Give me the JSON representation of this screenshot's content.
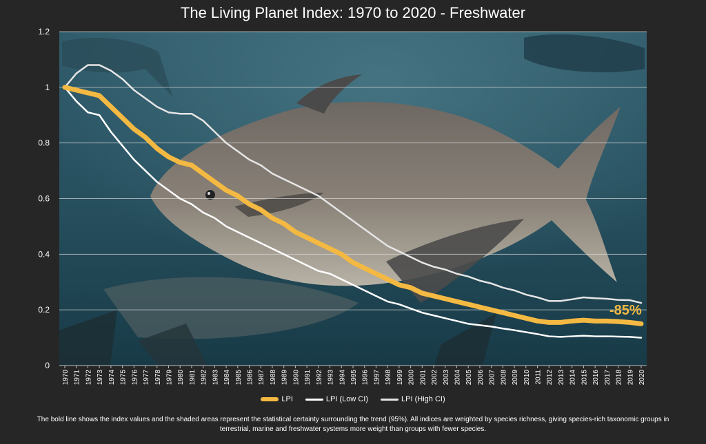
{
  "chart_data": {
    "type": "line",
    "title": "The Living Planet Index: 1970 to 2020 - Freshwater",
    "xlabel": "",
    "ylabel": "",
    "x": [
      "1970",
      "1971",
      "1972",
      "1973",
      "1974",
      "1975",
      "1976",
      "1977",
      "1978",
      "1979",
      "1980",
      "1981",
      "1982",
      "1983",
      "1984",
      "1985",
      "1986",
      "1987",
      "1988",
      "1989",
      "1990",
      "1991",
      "1992",
      "1993",
      "1994",
      "1995",
      "1996",
      "1997",
      "1998",
      "1999",
      "2000",
      "2001",
      "2002",
      "2003",
      "2004",
      "2005",
      "2006",
      "2007",
      "2008",
      "2009",
      "2010",
      "2011",
      "2012",
      "2013",
      "2014",
      "2015",
      "2016",
      "2017",
      "2018",
      "2019",
      "2020"
    ],
    "ylim": [
      0,
      1.2
    ],
    "yticks": [
      "0",
      "0.2",
      "0.4",
      "0.6",
      "0.8",
      "1",
      "1.2"
    ],
    "grid": true,
    "legend_position": "bottom",
    "series": [
      {
        "name": "LPI",
        "color": "#f4b942",
        "values": [
          1.0,
          0.99,
          0.98,
          0.97,
          0.93,
          0.89,
          0.85,
          0.82,
          0.78,
          0.75,
          0.73,
          0.72,
          0.69,
          0.66,
          0.63,
          0.61,
          0.58,
          0.56,
          0.53,
          0.51,
          0.48,
          0.46,
          0.44,
          0.42,
          0.4,
          0.37,
          0.35,
          0.33,
          0.31,
          0.29,
          0.28,
          0.26,
          0.25,
          0.24,
          0.23,
          0.22,
          0.21,
          0.2,
          0.19,
          0.18,
          0.17,
          0.16,
          0.155,
          0.155,
          0.16,
          0.163,
          0.16,
          0.16,
          0.158,
          0.155,
          0.15
        ]
      },
      {
        "name": "LPI (Low CI)",
        "color": "#ffffff",
        "values": [
          1.0,
          0.95,
          0.91,
          0.9,
          0.84,
          0.79,
          0.74,
          0.7,
          0.66,
          0.63,
          0.6,
          0.58,
          0.55,
          0.53,
          0.5,
          0.48,
          0.46,
          0.44,
          0.42,
          0.4,
          0.38,
          0.36,
          0.34,
          0.33,
          0.31,
          0.29,
          0.27,
          0.25,
          0.23,
          0.22,
          0.205,
          0.19,
          0.18,
          0.17,
          0.16,
          0.15,
          0.145,
          0.14,
          0.133,
          0.127,
          0.12,
          0.113,
          0.105,
          0.103,
          0.105,
          0.107,
          0.105,
          0.105,
          0.104,
          0.103,
          0.1
        ]
      },
      {
        "name": "LPI (High CI)",
        "color": "#e6e6e6",
        "values": [
          1.0,
          1.05,
          1.08,
          1.08,
          1.06,
          1.03,
          0.99,
          0.96,
          0.93,
          0.91,
          0.905,
          0.905,
          0.88,
          0.84,
          0.8,
          0.77,
          0.74,
          0.72,
          0.69,
          0.67,
          0.65,
          0.63,
          0.61,
          0.58,
          0.55,
          0.52,
          0.49,
          0.46,
          0.43,
          0.41,
          0.39,
          0.37,
          0.355,
          0.345,
          0.33,
          0.32,
          0.305,
          0.295,
          0.28,
          0.27,
          0.255,
          0.245,
          0.232,
          0.232,
          0.238,
          0.245,
          0.242,
          0.24,
          0.236,
          0.235,
          0.225
        ]
      }
    ],
    "annotation": "-85%"
  },
  "footnote": "The bold line shows the index values and the shaded areas represent the statistical certainty surrounding the trend (95%). All indices are weighted by species richness, giving species-rich taxonomic groups in terrestrial, marine and freshwater systems more weight than groups with fewer species."
}
